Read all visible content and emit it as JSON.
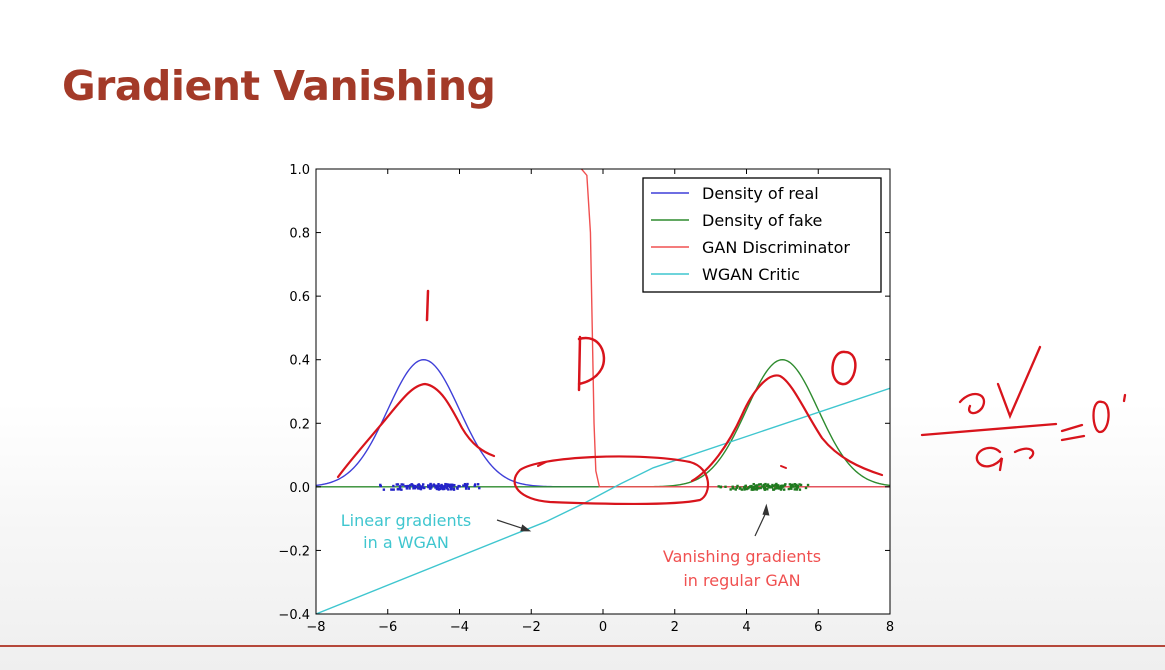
{
  "slide": {
    "title": "Gradient Vanishing"
  },
  "chart_data": {
    "type": "line",
    "xlim": [
      -8,
      8
    ],
    "ylim": [
      -0.4,
      1.0
    ],
    "xticks": [
      -8,
      -6,
      -4,
      -2,
      0,
      2,
      4,
      6,
      8
    ],
    "xtick_labels": [
      "−8",
      "−6",
      "−4",
      "−2",
      "0",
      "2",
      "4",
      "6",
      "8"
    ],
    "yticks": [
      -0.4,
      -0.2,
      0.0,
      0.2,
      0.4,
      0.6,
      0.8,
      1.0
    ],
    "ytick_labels": [
      "−0.4",
      "−0.2",
      "0.0",
      "0.2",
      "0.4",
      "0.6",
      "0.8",
      "1.0"
    ],
    "grid": false,
    "legend_position": "top-right",
    "series": [
      {
        "name": "Density of real",
        "color": "#3f3fd8",
        "kind": "gaussian",
        "mean": -5,
        "std": 1,
        "peak": 0.4
      },
      {
        "name": "Density of fake",
        "color": "#2e8b2e",
        "kind": "gaussian",
        "mean": 5,
        "std": 1,
        "peak": 0.4
      },
      {
        "name": "GAN Discriminator",
        "color": "#f05050",
        "kind": "sigmoid",
        "points": [
          [
            -0.6,
            1.0
          ],
          [
            -0.45,
            0.98
          ],
          [
            -0.35,
            0.8
          ],
          [
            -0.3,
            0.5
          ],
          [
            -0.25,
            0.2
          ],
          [
            -0.2,
            0.05
          ],
          [
            -0.1,
            0.0
          ],
          [
            8,
            0.0
          ]
        ]
      },
      {
        "name": "WGAN Critic",
        "color": "#3fc6cf",
        "kind": "line",
        "points": [
          [
            -8,
            -0.4
          ],
          [
            -1.6,
            -0.11
          ],
          [
            -0.5,
            -0.05
          ],
          [
            0.5,
            0.01
          ],
          [
            1.4,
            0.06
          ],
          [
            8,
            0.31
          ]
        ]
      }
    ],
    "scatter": [
      {
        "series": "real",
        "color": "#2323c8",
        "center": -4.8,
        "spread": 1.6
      },
      {
        "series": "fake",
        "color": "#1f7a1f",
        "center": 4.6,
        "spread": 1.6
      }
    ],
    "annotations": [
      {
        "text_lines": [
          "Linear gradients",
          "in a WGAN"
        ],
        "color": "#3fc6cf",
        "arrow_to": [
          -2,
          -0.14
        ]
      },
      {
        "text_lines": [
          "Vanishing gradients",
          "in regular GAN"
        ],
        "color": "#f05050",
        "arrow_to": [
          4.5,
          -0.04
        ]
      }
    ]
  },
  "ink": {
    "color": "#d8141c",
    "marks": [
      "1",
      "D",
      "0",
      "∂V/∂G = 0"
    ]
  }
}
